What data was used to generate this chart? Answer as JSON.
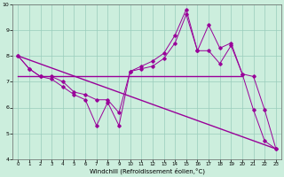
{
  "xlabel": "Windchill (Refroidissement éolien,°C)",
  "bg_color": "#cceedd",
  "grid_color": "#99ccbb",
  "line_color": "#990099",
  "x_ticks": [
    0,
    1,
    2,
    3,
    4,
    5,
    6,
    7,
    8,
    9,
    10,
    11,
    12,
    13,
    14,
    15,
    16,
    17,
    18,
    19,
    20,
    21,
    22,
    23
  ],
  "ylim": [
    4,
    10
  ],
  "yticks": [
    4,
    5,
    6,
    7,
    8,
    9,
    10
  ],
  "series": [
    {
      "x": [
        0,
        1,
        2,
        3,
        4,
        5,
        6,
        7,
        8,
        9,
        10,
        11,
        12,
        13,
        14,
        15,
        16,
        17,
        18,
        19,
        20,
        21,
        22,
        23
      ],
      "y": [
        8.0,
        7.5,
        7.2,
        7.2,
        7.0,
        6.6,
        6.5,
        6.3,
        6.3,
        5.8,
        7.4,
        7.6,
        7.8,
        8.1,
        8.8,
        9.8,
        8.2,
        9.2,
        8.3,
        8.5,
        7.3,
        7.2,
        5.9,
        4.4
      ]
    },
    {
      "x": [
        0,
        1,
        2,
        3,
        4,
        5,
        6,
        7,
        8,
        9,
        10,
        11,
        12,
        13,
        14,
        15,
        16,
        17,
        18,
        19,
        20,
        21,
        22,
        23
      ],
      "y": [
        8.0,
        7.5,
        7.2,
        7.1,
        6.8,
        6.5,
        6.3,
        5.3,
        6.2,
        5.3,
        7.4,
        7.5,
        7.6,
        7.9,
        8.5,
        9.6,
        8.2,
        8.2,
        7.7,
        8.4,
        7.3,
        5.9,
        4.7,
        4.4
      ]
    },
    {
      "x": [
        0,
        23
      ],
      "y": [
        8.0,
        4.4
      ]
    },
    {
      "x": [
        0,
        20
      ],
      "y": [
        7.2,
        7.2
      ]
    }
  ]
}
